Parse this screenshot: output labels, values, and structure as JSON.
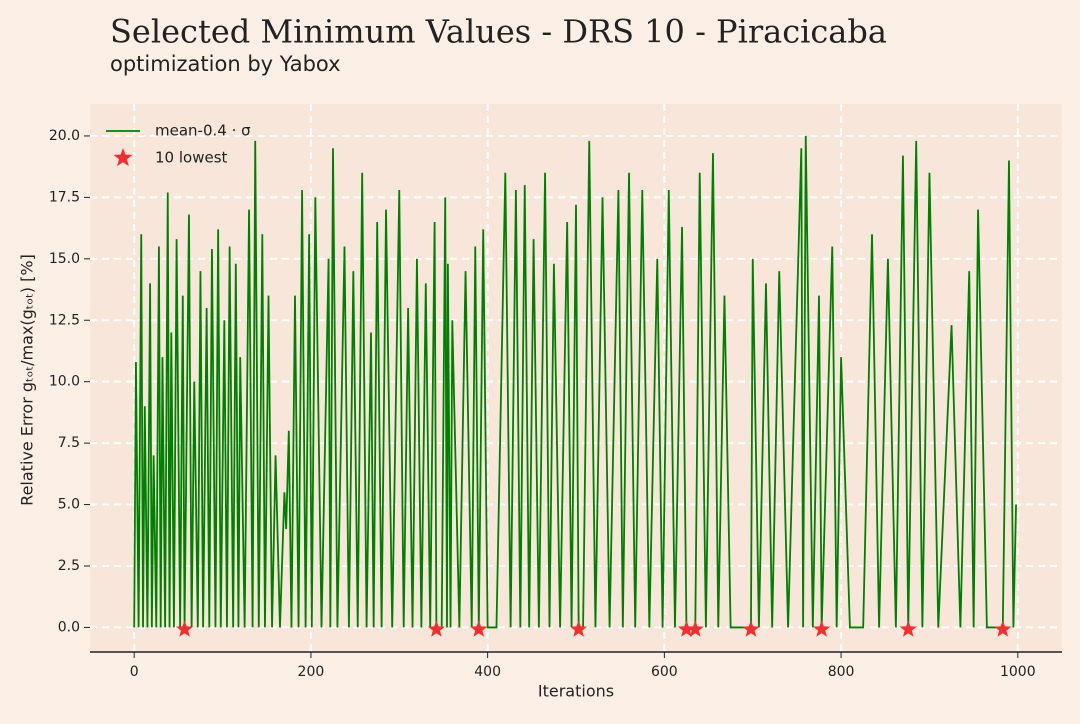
{
  "chart_data": {
    "type": "line",
    "title": "Selected Minimum Values - DRS 10 - Piracicaba",
    "subtitle": "optimization by Yabox",
    "x_label": "Iterations",
    "y_label": "Relative Error gₜₒₜ/max(gₜₒₜ) [%]",
    "xlim": [
      -50,
      1050
    ],
    "ylim": [
      -1,
      21.3
    ],
    "xticks": [
      0,
      200,
      400,
      600,
      800,
      1000
    ],
    "yticks": [
      {
        "value": 0,
        "label": "0.0"
      },
      2.5,
      {
        "value": 5,
        "label": "5.0"
      },
      7.5,
      {
        "value": 10,
        "label": "10.0"
      },
      12.5,
      {
        "value": 15,
        "label": "15.0"
      },
      17.5,
      {
        "value": 20,
        "label": "20.0"
      }
    ],
    "grid": true,
    "legend": "upper left",
    "series": [
      {
        "name": "mean-0.4 · σ",
        "color": "#008000",
        "kind": "line",
        "x": [
          0,
          2,
          5,
          8,
          10,
          12,
          15,
          18,
          20,
          22,
          25,
          28,
          30,
          32,
          35,
          38,
          40,
          42,
          45,
          48,
          52,
          55,
          57,
          62,
          65,
          68,
          72,
          75,
          78,
          82,
          85,
          88,
          92,
          95,
          98,
          102,
          105,
          108,
          112,
          115,
          118,
          120,
          125,
          130,
          134,
          137,
          141,
          145,
          148,
          152,
          156,
          160,
          165,
          170,
          172,
          175,
          178,
          182,
          186,
          190,
          194,
          198,
          201,
          205,
          212,
          220,
          222,
          225,
          230,
          238,
          243,
          248,
          253,
          258,
          263,
          268,
          271,
          275,
          280,
          285,
          292,
          300,
          305,
          310,
          315,
          320,
          325,
          330,
          335,
          340,
          342,
          348,
          352,
          354,
          355,
          358,
          360,
          368,
          375,
          382,
          386,
          390,
          395,
          400,
          410,
          420,
          426,
          432,
          437,
          442,
          447,
          452,
          458,
          465,
          470,
          475,
          482,
          490,
          495,
          500,
          503,
          508,
          515,
          522,
          530,
          538,
          548,
          553,
          560,
          567,
          575,
          583,
          592,
          598,
          605,
          612,
          620,
          625,
          635,
          640,
          647,
          655,
          661,
          668,
          675,
          698,
          700,
          707,
          715,
          722,
          730,
          740,
          755,
          757,
          760,
          768,
          775,
          778,
          790,
          795,
          800,
          810,
          825,
          835,
          843,
          853,
          862,
          870,
          876,
          885,
          892,
          900,
          910,
          925,
          935,
          945,
          950,
          955,
          965,
          983,
          990,
          995,
          998
        ],
        "values": [
          0,
          10.8,
          0,
          16,
          0,
          9,
          0,
          14,
          0,
          7,
          0,
          15.5,
          0,
          11,
          0,
          17.7,
          0,
          12,
          0,
          15.8,
          0,
          13.5,
          0,
          16.8,
          0,
          10,
          0,
          14.5,
          0,
          13,
          0,
          15.4,
          0,
          16.2,
          0,
          12.5,
          0,
          15.5,
          0,
          14.8,
          0,
          11,
          0,
          17,
          0,
          19.8,
          0,
          16,
          0,
          13.5,
          0,
          7,
          0,
          5.5,
          4,
          8,
          0,
          13.5,
          0,
          17.8,
          0,
          16,
          0,
          17.5,
          0,
          15,
          0,
          19.5,
          0,
          15.5,
          0,
          14.5,
          0,
          18.5,
          0,
          12,
          0,
          16.5,
          0,
          17,
          0,
          17.8,
          0,
          13,
          0,
          15,
          0,
          14,
          0,
          16.5,
          0,
          0,
          17.5,
          0,
          14.8,
          0,
          12.5,
          0,
          14.5,
          0,
          15.5,
          0,
          16.2,
          0,
          0,
          18.5,
          0,
          17.8,
          0,
          18,
          0,
          15.8,
          0,
          18.5,
          0,
          14.8,
          0,
          16.5,
          0,
          17.2,
          0,
          0,
          19.8,
          0,
          17.5,
          0,
          17.8,
          0,
          18.5,
          0,
          17.8,
          0,
          15,
          0,
          17.8,
          0,
          16.3,
          0,
          0,
          18.5,
          0,
          19.3,
          0,
          13.5,
          0,
          0,
          15,
          0,
          14,
          0,
          14.5,
          0,
          19.5,
          0,
          20,
          0,
          13.5,
          0,
          15.5,
          0,
          11,
          0,
          0,
          16,
          0,
          15,
          0,
          19.2,
          0,
          19.8,
          0,
          18.5,
          0,
          12.3,
          0,
          14.5,
          0,
          17,
          0,
          0,
          19,
          0,
          5
        ]
      },
      {
        "name": "10 lowest",
        "color": "#f03030",
        "kind": "scatter",
        "x": [
          57,
          342,
          390,
          503,
          625,
          635,
          698,
          778,
          876,
          983
        ],
        "values": [
          0,
          0,
          0,
          0,
          0,
          0,
          0,
          0,
          0,
          0
        ]
      }
    ]
  }
}
